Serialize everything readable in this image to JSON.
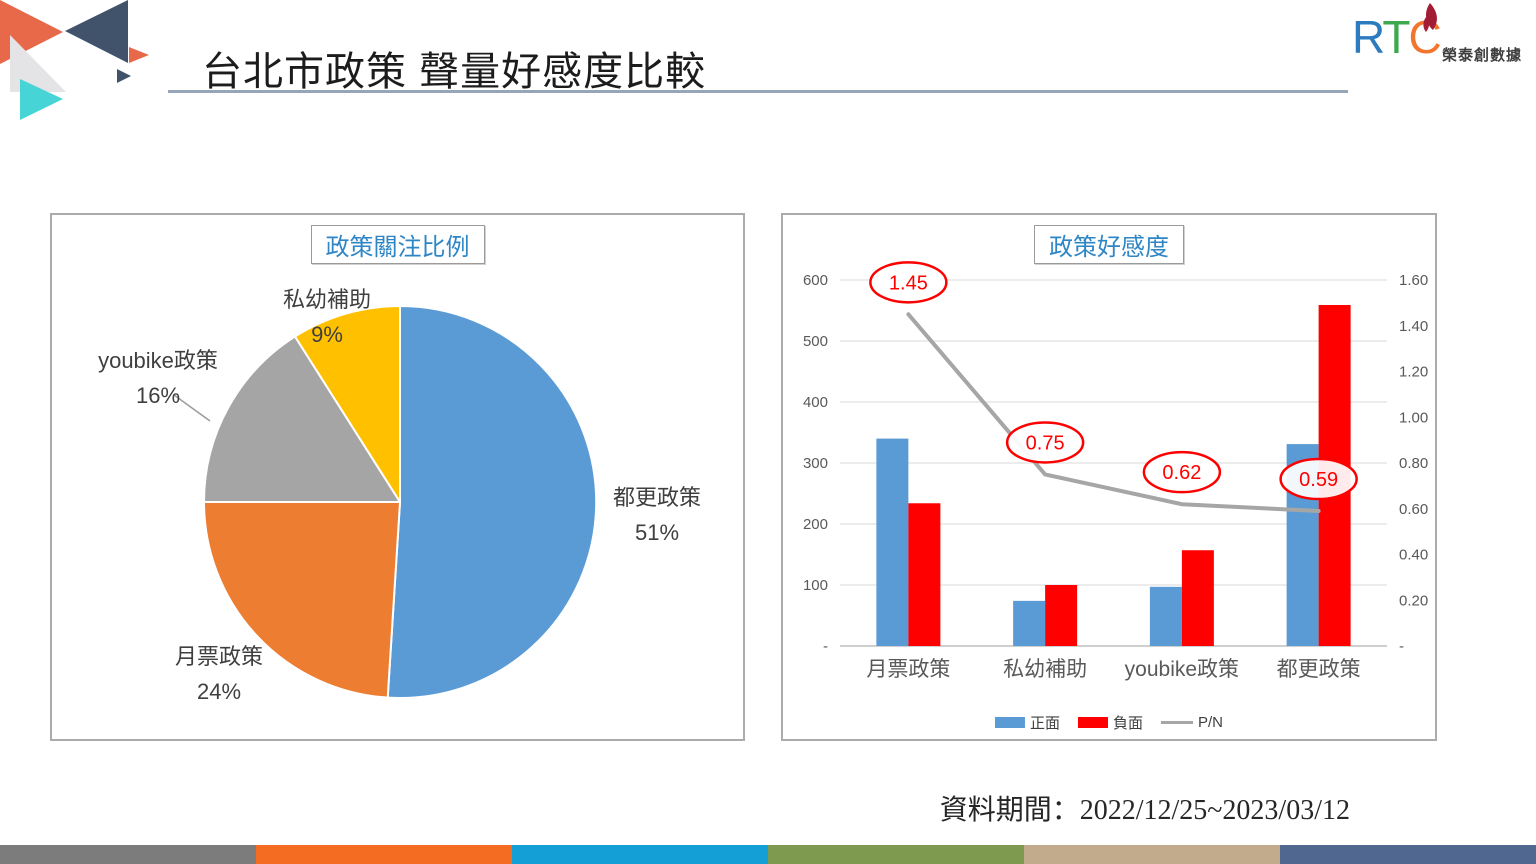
{
  "slide": {
    "title": "台北市政策 聲量好感度比較",
    "footer_note": "資料期間：2022/12/25~2023/03/12"
  },
  "logo": {
    "letters": [
      {
        "char": "R",
        "color": "#2B7BBE"
      },
      {
        "char": "T",
        "color": "#3CA94E"
      },
      {
        "char": "C",
        "color": "#F2752E"
      }
    ],
    "company": "榮泰創數據",
    "flame_color": "#A21C34"
  },
  "colors": {
    "title_blue": "#2E86C6",
    "rule": "#97A5B8",
    "panel_border": "#ABABAB",
    "grid": "#D9D9D9",
    "axis": "#BFBFBF",
    "callout_red": "#FF0000",
    "text_dark": "#3F3F3F",
    "text_gray": "#595959",
    "leader_gray": "#9B9B9B"
  },
  "chart_data": [
    {
      "type": "pie",
      "title": "政策關注比例",
      "labels": [
        "都更政策",
        "月票政策",
        "youbike政策",
        "私幼補助"
      ],
      "values_percent": [
        51,
        24,
        16,
        9
      ],
      "percent_labels": [
        "51%",
        "24%",
        "16%",
        "9%"
      ],
      "colors": [
        "#5B9BD5",
        "#ED7D31",
        "#A5A5A5",
        "#FFC000"
      ],
      "start_angle_deg": 0,
      "direction": "clockwise",
      "legend_position": "none"
    },
    {
      "type": "bar+line",
      "title": "政策好感度",
      "categories": [
        "月票政策",
        "私幼補助",
        "youbike政策",
        "都更政策"
      ],
      "series": [
        {
          "name": "正面",
          "type": "bar",
          "axis": "left",
          "color": "#5B9BD5",
          "values": [
            340,
            74,
            97,
            331
          ]
        },
        {
          "name": "負面",
          "type": "bar",
          "axis": "left",
          "color": "#FF0000",
          "values": [
            234,
            100,
            157,
            559
          ]
        },
        {
          "name": "P/N",
          "type": "line",
          "axis": "right",
          "color": "#A6A6A6",
          "values": [
            1.45,
            0.75,
            0.62,
            0.59
          ]
        }
      ],
      "callout_labels": [
        "1.45",
        "0.75",
        "0.62",
        "0.59"
      ],
      "left_axis": {
        "ticks": [
          "600",
          "500",
          "400",
          "300",
          "200",
          "100",
          "-"
        ],
        "max": 600,
        "min": 0
      },
      "right_axis": {
        "ticks": [
          "1.60",
          "1.40",
          "1.20",
          "1.00",
          "0.80",
          "0.60",
          "0.40",
          "0.20",
          "-"
        ],
        "max": 1.6,
        "min": 0
      },
      "grid": true,
      "legend_position": "bottom"
    }
  ],
  "footer": {
    "stripe_colors": [
      "#7C7C7C",
      "#F36C21",
      "#14A0D6",
      "#7D9A4F",
      "#C2AB8D",
      "#50678F"
    ]
  }
}
